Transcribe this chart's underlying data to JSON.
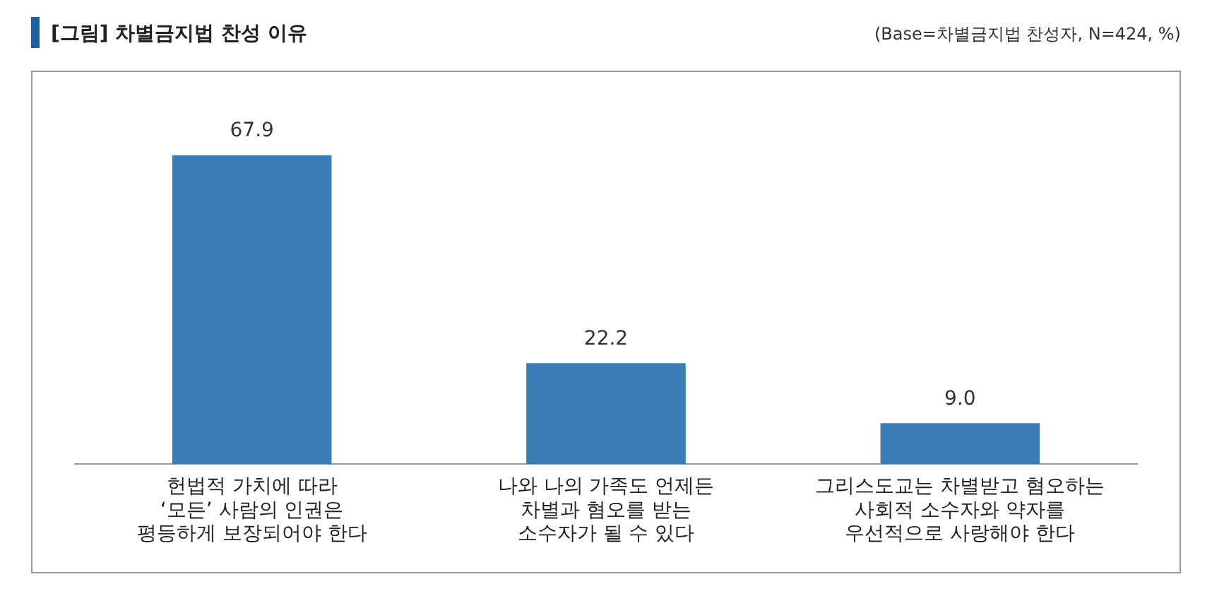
{
  "chart_data": {
    "type": "bar",
    "title": "[그림] 차별금지법 찬성 이유",
    "subtitle": "(Base=차별금지법 찬성자, N=424, %)",
    "categories": [
      "헌법적 가치에 따라\n‘모든’ 사람의 인권은\n평등하게 보장되어야 한다",
      "나와 나의 가족도 언제든\n차별과 혐오를 받는\n소수자가 될 수 있다",
      "그리스도교는 차별받고 혐오하는\n사회적 소수자와 약자를\n우선적으로 사랑해야 한다"
    ],
    "values": [
      67.9,
      22.2,
      9.0
    ],
    "value_labels": [
      "67.9",
      "22.2",
      "9.0"
    ],
    "color": "#3a7db6",
    "legend": false,
    "grid": false
  }
}
